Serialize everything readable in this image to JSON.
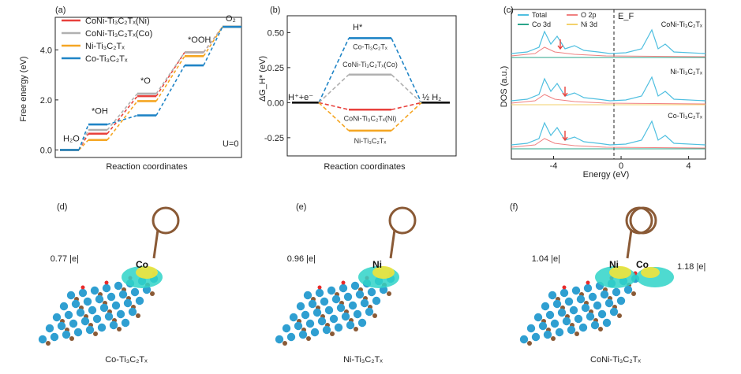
{
  "panels": {
    "a": "(a)",
    "b": "(b)",
    "c": "(c)",
    "d": "(d)",
    "e": "(e)",
    "f": "(f)"
  },
  "chart_data": [
    {
      "id": "a",
      "type": "line",
      "xlabel": "Reaction coordinates",
      "ylabel": "Free energy (eV)",
      "ylim": [
        -0.3,
        5.3
      ],
      "yticks": [
        "0.0",
        "2.0",
        "4.0"
      ],
      "steps": [
        "H₂O",
        "*OH",
        "*O",
        "*OOH",
        "O₂"
      ],
      "annotation": "U=0",
      "legend_position": "top-left",
      "series": [
        {
          "name": "CoNi-Ti₃C₂Tₓ(Ni)",
          "color": "#e8413c",
          "values": [
            0,
            0.65,
            2.15,
            3.9,
            4.92
          ]
        },
        {
          "name": "CoNi-Ti₃C₂Tₓ(Co)",
          "color": "#b0b0b0",
          "values": [
            0,
            0.8,
            2.25,
            3.9,
            4.92
          ]
        },
        {
          "name": "Ni-Ti₃C₂Tₓ",
          "color": "#f5a623",
          "values": [
            0,
            0.4,
            1.95,
            3.75,
            4.92
          ]
        },
        {
          "name": "Co-Ti₃C₂Tₓ",
          "color": "#1f84c6",
          "values": [
            0,
            1.02,
            1.38,
            3.38,
            4.92
          ]
        }
      ]
    },
    {
      "id": "b",
      "type": "line",
      "xlabel": "Reaction coordinates",
      "ylabel": "ΔG_H* (eV)",
      "ylim": [
        -0.38,
        0.62
      ],
      "yticks": [
        "0.50",
        "0.25",
        "0.00",
        "-0.25"
      ],
      "left_label": "H⁺+e⁻",
      "right_label": "½ H₂",
      "mid_label": "H*",
      "series": [
        {
          "name": "Co-Ti₃C₂Tₓ",
          "color": "#1f84c6",
          "value": 0.46
        },
        {
          "name": "CoNi-Ti₃C₂Tₓ(Co)",
          "color": "#b0b0b0",
          "value": 0.2
        },
        {
          "name": "CoNi-Ti₃C₂Tₓ(Ni)",
          "color": "#e8413c",
          "value": -0.05
        },
        {
          "name": "Ni-Ti₃C₂Tₓ",
          "color": "#f5a623",
          "value": -0.2
        }
      ]
    },
    {
      "id": "c",
      "type": "line",
      "xlabel": "Energy (eV)",
      "ylabel": "DOS (a.u.)",
      "xlim": [
        -6.5,
        5
      ],
      "xticks": [
        "-4",
        "0",
        "4"
      ],
      "fermi_label": "E_F",
      "legend": [
        {
          "name": "Total",
          "color": "#4fbfe0"
        },
        {
          "name": "O 2p",
          "color": "#f08080"
        },
        {
          "name": "Co 3d",
          "color": "#2aa58a"
        },
        {
          "name": "Ni 3d",
          "color": "#f3d16b"
        }
      ],
      "subpanels": [
        "CoNi-Ti₃C₂Tₓ",
        "Ni-Ti₃C₂Tₓ",
        "Co-Ti₃C₂Tₓ"
      ]
    }
  ],
  "structures": [
    {
      "id": "d",
      "caption": "Co-Ti₃C₂Tₓ",
      "charges": [
        "0.77 |e|"
      ],
      "atoms": [
        "Co"
      ]
    },
    {
      "id": "e",
      "caption": "Ni-Ti₃C₂Tₓ",
      "charges": [
        "0.96 |e|"
      ],
      "atoms": [
        "Ni"
      ]
    },
    {
      "id": "f",
      "caption": "CoNi-Ti₃C₂Tₓ",
      "charges": [
        "1.04 |e|",
        "1.18 |e|"
      ],
      "atoms": [
        "Ni",
        "Co"
      ]
    }
  ]
}
